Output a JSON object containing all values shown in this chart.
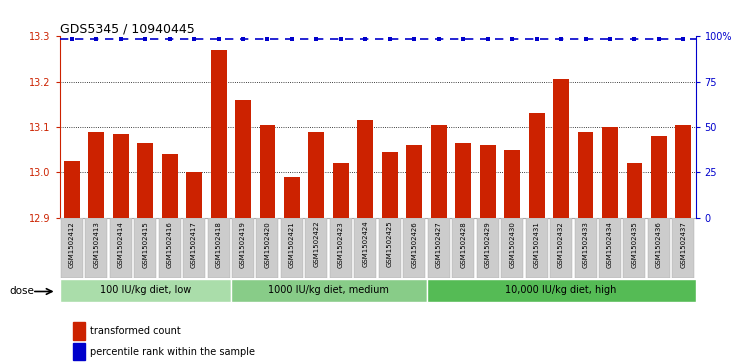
{
  "title": "GDS5345 / 10940445",
  "samples": [
    "GSM1502412",
    "GSM1502413",
    "GSM1502414",
    "GSM1502415",
    "GSM1502416",
    "GSM1502417",
    "GSM1502418",
    "GSM1502419",
    "GSM1502420",
    "GSM1502421",
    "GSM1502422",
    "GSM1502423",
    "GSM1502424",
    "GSM1502425",
    "GSM1502426",
    "GSM1502427",
    "GSM1502428",
    "GSM1502429",
    "GSM1502430",
    "GSM1502431",
    "GSM1502432",
    "GSM1502433",
    "GSM1502434",
    "GSM1502435",
    "GSM1502436",
    "GSM1502437"
  ],
  "values": [
    13.025,
    13.09,
    13.085,
    13.065,
    13.04,
    13.0,
    13.27,
    13.16,
    13.105,
    12.99,
    13.09,
    13.02,
    13.115,
    13.045,
    13.06,
    13.105,
    13.065,
    13.06,
    13.05,
    13.13,
    13.205,
    13.09,
    13.1,
    13.02,
    13.08,
    13.105
  ],
  "percentile_value": 13.295,
  "ylim": [
    12.9,
    13.3
  ],
  "yticks": [
    12.9,
    13.0,
    13.1,
    13.2,
    13.3
  ],
  "right_yticks": [
    0,
    25,
    50,
    75,
    100
  ],
  "right_yticklabels": [
    "0",
    "25",
    "50",
    "75",
    "100%"
  ],
  "bar_color": "#cc2200",
  "percentile_color": "#0000cc",
  "grid_color": "#000000",
  "groups": [
    {
      "label": "100 IU/kg diet, low",
      "start": 0,
      "end": 7
    },
    {
      "label": "1000 IU/kg diet, medium",
      "start": 7,
      "end": 15
    },
    {
      "label": "10,000 IU/kg diet, high",
      "start": 15,
      "end": 26
    }
  ],
  "group_colors": [
    "#aaddaa",
    "#88cc88",
    "#55bb55"
  ],
  "dose_label": "dose",
  "legend_items": [
    {
      "label": "transformed count",
      "color": "#cc2200"
    },
    {
      "label": "percentile rank within the sample",
      "color": "#0000cc"
    }
  ]
}
